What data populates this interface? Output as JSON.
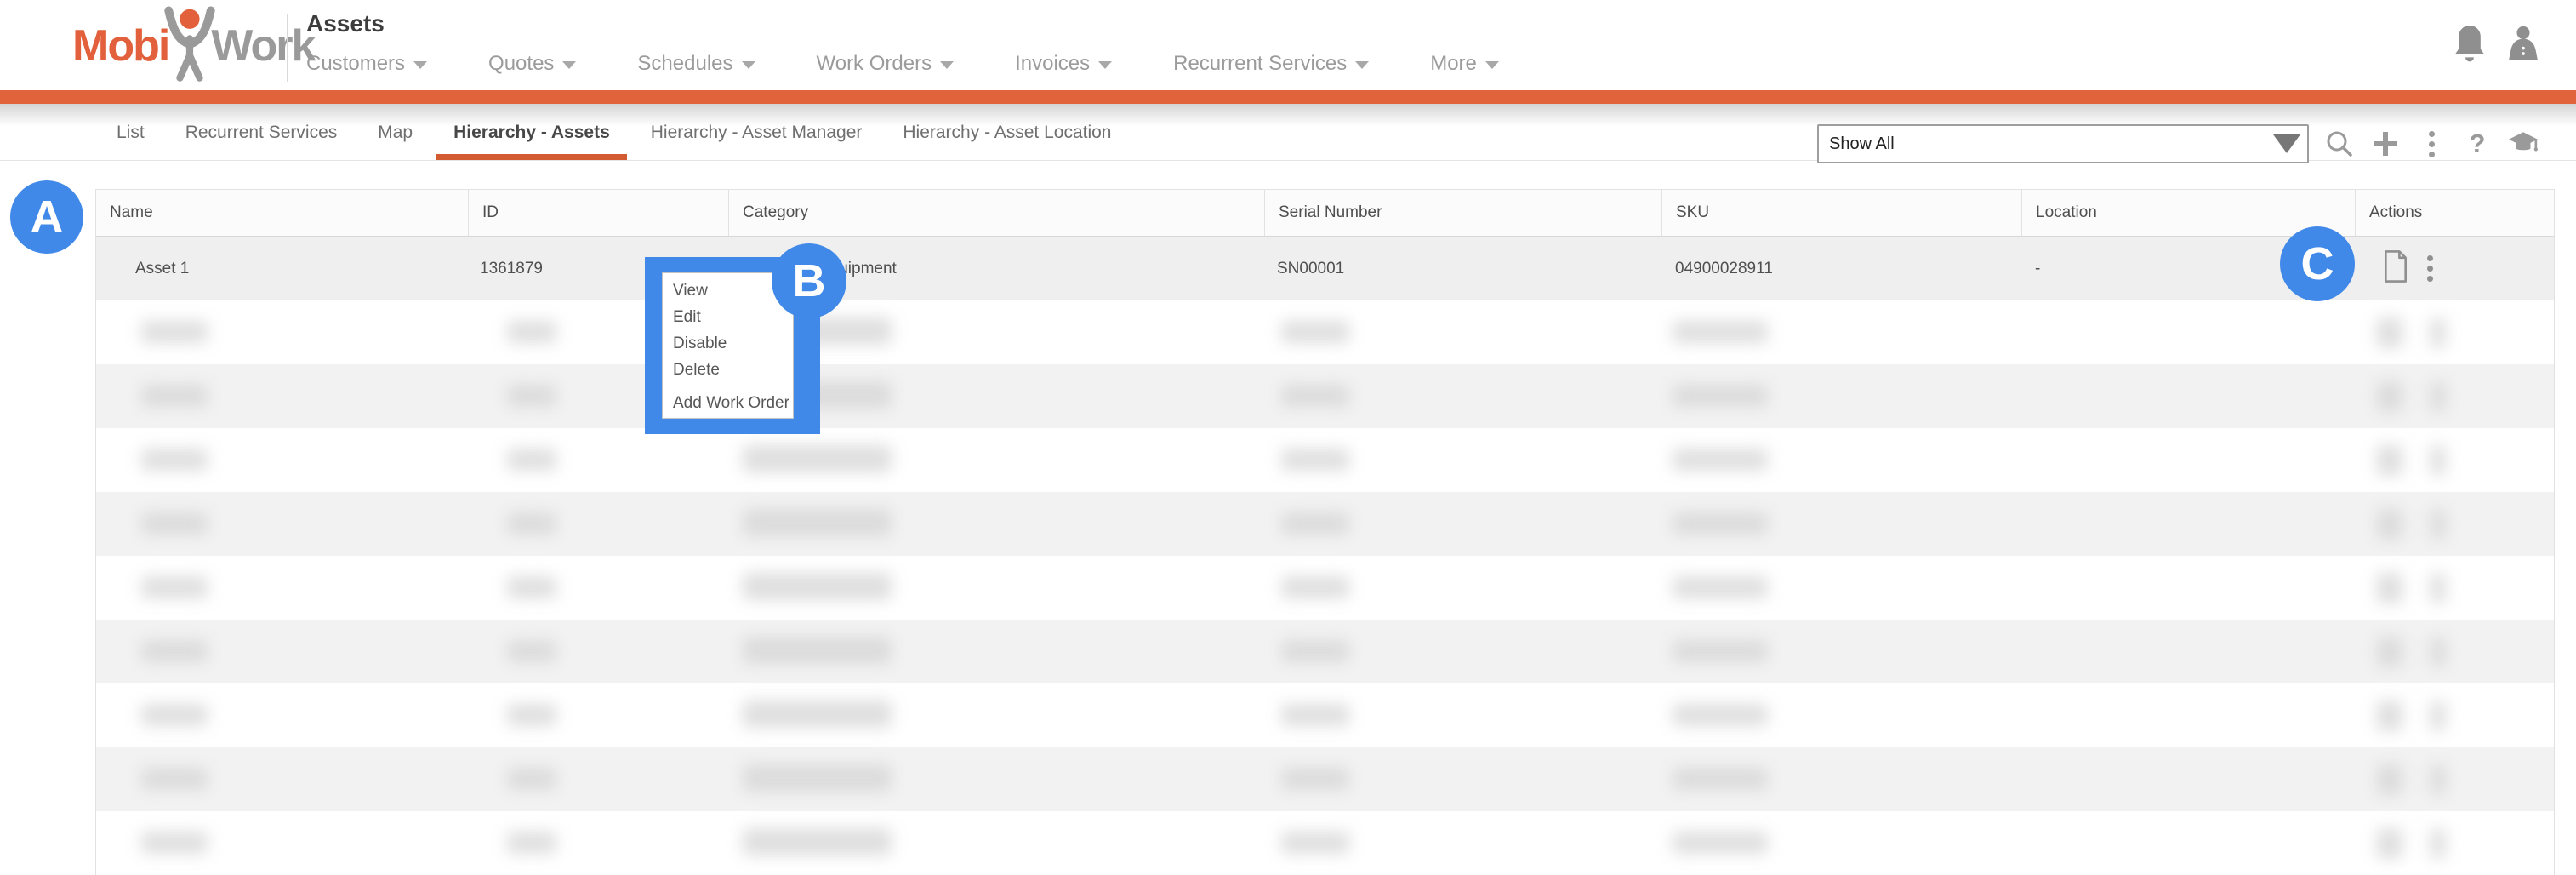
{
  "header": {
    "logo_mobi": "Mobi",
    "logo_work": "Work",
    "page_title": "Assets",
    "nav_items": [
      {
        "label": "Customers"
      },
      {
        "label": "Quotes"
      },
      {
        "label": "Schedules"
      },
      {
        "label": "Work Orders"
      },
      {
        "label": "Invoices"
      },
      {
        "label": "Recurrent Services"
      },
      {
        "label": "More"
      }
    ]
  },
  "tabs": [
    {
      "label": "List",
      "active": false
    },
    {
      "label": "Recurrent Services",
      "active": false
    },
    {
      "label": "Map",
      "active": false
    },
    {
      "label": "Hierarchy - Assets",
      "active": true
    },
    {
      "label": "Hierarchy - Asset Manager",
      "active": false
    },
    {
      "label": "Hierarchy - Asset Location",
      "active": false
    }
  ],
  "filter": {
    "selected": "Show All"
  },
  "toolbar": {
    "icons": [
      "search",
      "add",
      "more-options",
      "help",
      "training"
    ],
    "help_glyph": "?"
  },
  "table": {
    "columns": [
      "Name",
      "ID",
      "Category",
      "Serial Number",
      "SKU",
      "Location",
      "Actions"
    ],
    "rows": [
      {
        "name": "Asset 1",
        "id": "1361879",
        "category": "Equipment",
        "serial_number": "SN00001",
        "sku": "04900028911",
        "location": "-"
      }
    ],
    "blurred_row_count": 9
  },
  "context_menu": {
    "items": [
      "View",
      "Edit",
      "Disable",
      "Delete"
    ],
    "footer_items": [
      "Add Work Order"
    ]
  },
  "annotations": {
    "a": "A",
    "b": "B",
    "c": "C"
  },
  "colors": {
    "accent_orange": "#E0633C",
    "logo_orange": "#E2603C",
    "tab_underline": "#D25B31",
    "annotation_blue": "#4189E8"
  }
}
